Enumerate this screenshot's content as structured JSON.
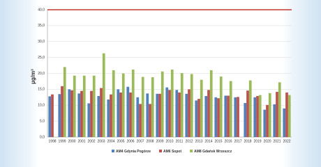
{
  "chart_data": {
    "type": "bar",
    "y_label": "µg/m³",
    "categories": [
      "1998",
      "1999",
      "2000",
      "2001",
      "2002",
      "2003",
      "2004",
      "2005",
      "2006",
      "2007",
      "2008",
      "2009",
      "2010",
      "2011",
      "2012",
      "2013",
      "2014",
      "2015",
      "2016",
      "2017",
      "2018",
      "2019",
      "2020",
      "2021",
      "2022"
    ],
    "series": [
      {
        "name": "AM4 Gdynia Pogórze",
        "color": "#4f81bd",
        "values": [
          12.8,
          13.5,
          15,
          13.7,
          10.6,
          12.9,
          11.8,
          15,
          15.8,
          12.5,
          13.7,
          13.6,
          15.6,
          14.8,
          13.6,
          11.5,
          12.9,
          12.5,
          13,
          12.5,
          10.7,
          12.5,
          8.6,
          10.3,
          9
        ]
      },
      {
        "name": "AM6 Sopot",
        "color": "#c0504d",
        "values": [
          13.4,
          16,
          14.7,
          14.5,
          14.5,
          15.4,
          13.4,
          14,
          14,
          10.4,
          10.4,
          13.6,
          14.8,
          14,
          15,
          12,
          14.8,
          12.2,
          13,
          12.6,
          14.6,
          12.9,
          10.1,
          14.2,
          14
        ]
      },
      {
        "name": "AM8 Gdańsk Wrzeszcz",
        "color": "#9bbb59",
        "values": [
          null,
          22,
          19.3,
          19.3,
          19.3,
          26.3,
          21,
          20,
          21.2,
          18.9,
          18.8,
          20.6,
          21.2,
          20.1,
          19.8,
          18,
          21,
          19,
          17.6,
          null,
          17.8,
          13.2,
          13.8,
          17.2,
          13.2
        ]
      }
    ],
    "limit": 40,
    "limit_color": "#c0392b",
    "ylim": [
      0,
      40
    ],
    "yticks": [
      {
        "value": 0,
        "label": "0,0"
      },
      {
        "value": 5,
        "label": "5,0"
      },
      {
        "value": 10,
        "label": "10,0"
      },
      {
        "value": 15,
        "label": "15,0"
      },
      {
        "value": 20,
        "label": "20,0"
      },
      {
        "value": 25,
        "label": "25,0"
      },
      {
        "value": 30,
        "label": "30,0"
      },
      {
        "value": 35,
        "label": "35,0"
      },
      {
        "value": 40,
        "label": "40,0"
      }
    ],
    "grid": true
  }
}
